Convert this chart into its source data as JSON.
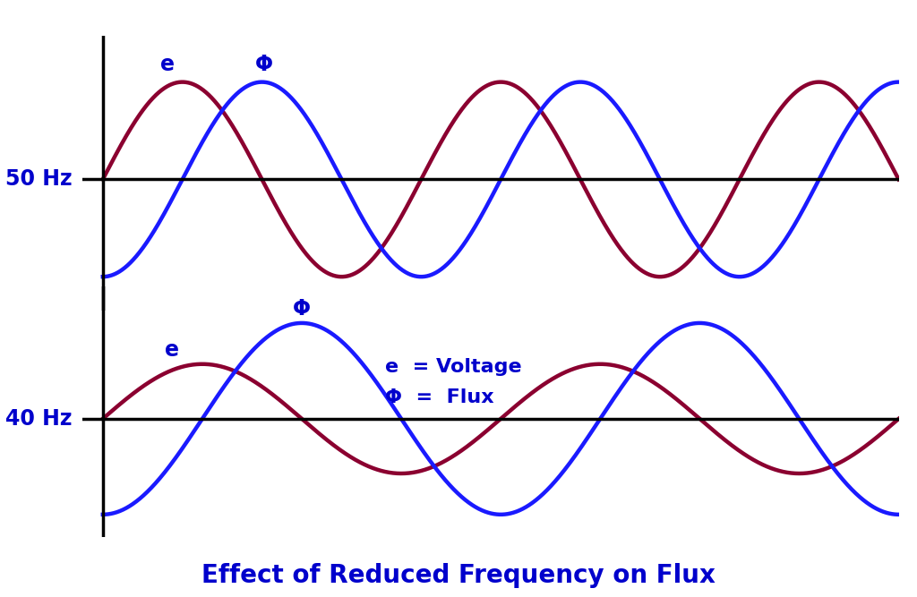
{
  "title": "Effect of Reduced Frequency on Flux",
  "title_color": "#0000CC",
  "title_fontsize": 20,
  "title_fontweight": "bold",
  "background_color": "#ffffff",
  "blue_color": "#1a1aff",
  "red_color": "#8B0030",
  "label_color": "#0000CC",
  "hz_label_color": "#0000CC",
  "panel1_label": "50 Hz",
  "panel2_label": "40 Hz",
  "amp_e_50": 0.78,
  "amp_phi_50": 0.78,
  "amp_e_40": 0.6,
  "amp_phi_40": 1.05,
  "phase_shift": 1.5707963267948966,
  "cycles_50": 2.5,
  "cycles_40": 2.0,
  "legend_e": "e  = Voltage",
  "legend_phi": "Φ  =  Flux",
  "legend_fontsize": 16,
  "label_fontsize": 17,
  "line_width": 3.2
}
